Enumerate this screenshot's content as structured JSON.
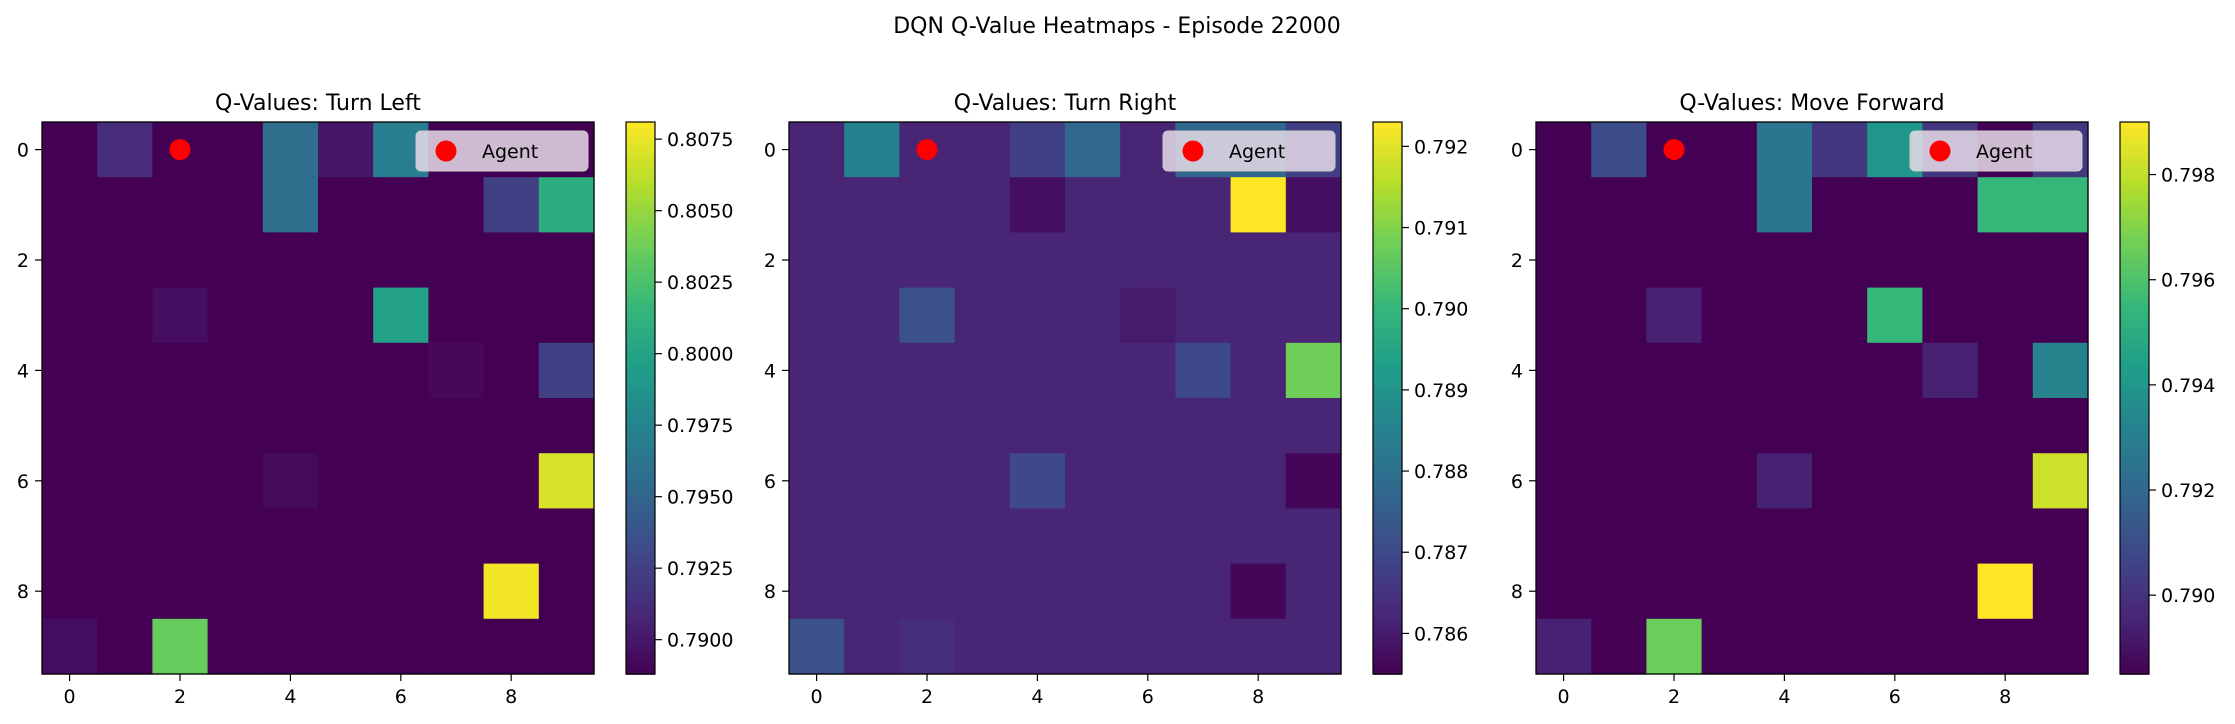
{
  "figure": {
    "title": "DQN Q-Value Heatmaps - Episode 22000"
  },
  "colors": {
    "viridis": [
      "#440154",
      "#482878",
      "#3e4989",
      "#31688e",
      "#26828e",
      "#1f9e89",
      "#35b779",
      "#6ece58",
      "#b5de2b",
      "#fde725"
    ],
    "agent": "#ff0000",
    "legend_bg": "#e6dce8"
  },
  "chart_data": [
    {
      "type": "heatmap",
      "title": "Q-Values: Turn Left",
      "rows": 10,
      "cols": 10,
      "xticks": [
        0,
        2,
        4,
        6,
        8
      ],
      "yticks": [
        0,
        2,
        4,
        6,
        8
      ],
      "vmin": 0.7888,
      "vmax": 0.8081,
      "colorbar_ticks": [
        "0.7900",
        "0.7925",
        "0.7950",
        "0.7975",
        "0.8000",
        "0.8025",
        "0.8050",
        "0.8075"
      ],
      "agent": {
        "row": 0,
        "col": 2,
        "label": "Agent"
      },
      "values": [
        [
          0.7888,
          0.7912,
          0.7888,
          0.7888,
          0.7958,
          0.79,
          0.797,
          0.7888,
          0.7888,
          0.7888
        ],
        [
          0.7888,
          0.7888,
          0.7888,
          0.7888,
          0.7958,
          0.7888,
          0.7888,
          0.7888,
          0.7925,
          0.8008
        ],
        [
          0.7888,
          0.7888,
          0.7888,
          0.7888,
          0.7888,
          0.7888,
          0.7888,
          0.7888,
          0.7888,
          0.7888
        ],
        [
          0.7888,
          0.7888,
          0.7895,
          0.7888,
          0.7888,
          0.7888,
          0.7998,
          0.7888,
          0.7888,
          0.7888
        ],
        [
          0.7888,
          0.7888,
          0.7888,
          0.7888,
          0.7888,
          0.7888,
          0.7888,
          0.7892,
          0.7888,
          0.7925
        ],
        [
          0.7888,
          0.7888,
          0.7888,
          0.7888,
          0.7888,
          0.7888,
          0.7888,
          0.7888,
          0.7888,
          0.7888
        ],
        [
          0.7888,
          0.7888,
          0.7888,
          0.7888,
          0.7893,
          0.7888,
          0.7888,
          0.7888,
          0.7888,
          0.807
        ],
        [
          0.7888,
          0.7888,
          0.7888,
          0.7888,
          0.7888,
          0.7888,
          0.7888,
          0.7888,
          0.7888,
          0.7888
        ],
        [
          0.7888,
          0.7888,
          0.7888,
          0.7888,
          0.7888,
          0.7888,
          0.7888,
          0.7888,
          0.8078,
          0.7888
        ],
        [
          0.7895,
          0.7888,
          0.8035,
          0.7888,
          0.7888,
          0.7888,
          0.7888,
          0.7888,
          0.7888,
          0.7888
        ]
      ]
    },
    {
      "type": "heatmap",
      "title": "Q-Values: Turn Right",
      "rows": 10,
      "cols": 10,
      "xticks": [
        0,
        2,
        4,
        6,
        8
      ],
      "yticks": [
        0,
        2,
        4,
        6,
        8
      ],
      "vmin": 0.7855,
      "vmax": 0.7923,
      "colorbar_ticks": [
        "0.786",
        "0.787",
        "0.788",
        "0.789",
        "0.790",
        "0.791",
        "0.792"
      ],
      "agent": {
        "row": 0,
        "col": 2,
        "label": "Agent"
      },
      "values": [
        [
          0.7862,
          0.7885,
          0.7862,
          0.7862,
          0.7868,
          0.7878,
          0.7862,
          0.7878,
          0.7878,
          0.7868
        ],
        [
          0.7862,
          0.7862,
          0.7862,
          0.7862,
          0.7858,
          0.7862,
          0.7862,
          0.7862,
          0.7923,
          0.7858
        ],
        [
          0.7862,
          0.7862,
          0.7862,
          0.7862,
          0.7862,
          0.7862,
          0.7862,
          0.7862,
          0.7862,
          0.7862
        ],
        [
          0.7862,
          0.7862,
          0.7872,
          0.7862,
          0.7862,
          0.7862,
          0.786,
          0.7862,
          0.7862,
          0.7862
        ],
        [
          0.7862,
          0.7862,
          0.7862,
          0.7862,
          0.7862,
          0.7862,
          0.7862,
          0.787,
          0.7862,
          0.7908
        ],
        [
          0.7862,
          0.7862,
          0.7862,
          0.7862,
          0.7862,
          0.7862,
          0.7862,
          0.7862,
          0.7862,
          0.7862
        ],
        [
          0.7862,
          0.7862,
          0.7862,
          0.7862,
          0.787,
          0.7862,
          0.7862,
          0.7862,
          0.7862,
          0.7856
        ],
        [
          0.7862,
          0.7862,
          0.7862,
          0.7862,
          0.7862,
          0.7862,
          0.7862,
          0.7862,
          0.7862,
          0.7862
        ],
        [
          0.7862,
          0.7862,
          0.7862,
          0.7862,
          0.7862,
          0.7862,
          0.7862,
          0.7862,
          0.7856,
          0.7862
        ],
        [
          0.7872,
          0.7862,
          0.7864,
          0.7862,
          0.7862,
          0.7862,
          0.7862,
          0.7862,
          0.7862,
          0.7862
        ]
      ]
    },
    {
      "type": "heatmap",
      "title": "Q-Values: Move Forward",
      "rows": 10,
      "cols": 10,
      "xticks": [
        0,
        2,
        4,
        6,
        8
      ],
      "yticks": [
        0,
        2,
        4,
        6,
        8
      ],
      "vmin": 0.7885,
      "vmax": 0.799,
      "colorbar_ticks": [
        "0.790",
        "0.792",
        "0.794",
        "0.796",
        "0.798"
      ],
      "agent": {
        "row": 0,
        "col": 2,
        "label": "Agent"
      },
      "values": [
        [
          0.7885,
          0.791,
          0.7885,
          0.7885,
          0.7926,
          0.7902,
          0.794,
          0.7902,
          0.7885,
          0.7902
        ],
        [
          0.7885,
          0.7885,
          0.7885,
          0.7885,
          0.7926,
          0.7885,
          0.7885,
          0.7885,
          0.7955,
          0.7955
        ],
        [
          0.7885,
          0.7885,
          0.7885,
          0.7885,
          0.7885,
          0.7885,
          0.7885,
          0.7885,
          0.7885,
          0.7885
        ],
        [
          0.7885,
          0.7885,
          0.7895,
          0.7885,
          0.7885,
          0.7885,
          0.7955,
          0.7885,
          0.7885,
          0.7885
        ],
        [
          0.7885,
          0.7885,
          0.7885,
          0.7885,
          0.7885,
          0.7885,
          0.7885,
          0.7895,
          0.7885,
          0.7932
        ],
        [
          0.7885,
          0.7885,
          0.7885,
          0.7885,
          0.7885,
          0.7885,
          0.7885,
          0.7885,
          0.7885,
          0.7885
        ],
        [
          0.7885,
          0.7885,
          0.7885,
          0.7885,
          0.7895,
          0.7885,
          0.7885,
          0.7885,
          0.7885,
          0.7982
        ],
        [
          0.7885,
          0.7885,
          0.7885,
          0.7885,
          0.7885,
          0.7885,
          0.7885,
          0.7885,
          0.7885,
          0.7885
        ],
        [
          0.7885,
          0.7885,
          0.7885,
          0.7885,
          0.7885,
          0.7885,
          0.7885,
          0.7885,
          0.799,
          0.7885
        ],
        [
          0.7895,
          0.7885,
          0.7966,
          0.7885,
          0.7885,
          0.7885,
          0.7885,
          0.7885,
          0.7885,
          0.7885
        ]
      ]
    }
  ]
}
